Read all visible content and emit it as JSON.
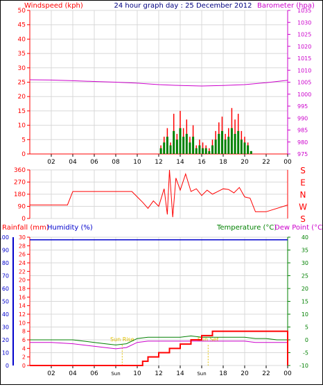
{
  "colors": {
    "wind": "#ff0000",
    "wind_avg": "#008000",
    "wind_gust": "#ff0000",
    "baro": "#cc00cc",
    "title": "#000080",
    "grid": "#d8d8d8",
    "rain": "#ff0000",
    "humidity": "#0000cc",
    "temperature": "#008000",
    "dewpoint": "#cc00cc",
    "sun": "#e0c000"
  },
  "header": {
    "title": "24 hour graph day : 25 December 2012",
    "left_label": "Windspeed (kph)",
    "right_label": "Barometer (hpa)"
  },
  "bottom_header": {
    "rainfall_label": "Rainfall (mm)",
    "humidity_label": "Humidity (%)",
    "temperature_label": "Temperature (°C)",
    "dewpoint_label": "Dew Point (°C)"
  },
  "x_ticks": [
    "02",
    "04",
    "06",
    "08",
    "10",
    "12",
    "14",
    "16",
    "18",
    "20",
    "22",
    "00"
  ],
  "bottom_x_ticks": [
    "02",
    "04",
    "06",
    "Sun Rise",
    "10",
    "12",
    "14",
    "Sun Set",
    "18",
    "20",
    "22",
    "00"
  ],
  "sun_labels": [
    "Sun Rise",
    "Sun Set"
  ],
  "direction_letters": [
    "S",
    "E",
    "N",
    "W",
    "S"
  ],
  "chart_data": [
    {
      "type": "line",
      "title": "24 hour graph day : 25 December 2012",
      "ylabel": "Windspeed (kph)",
      "ylabel_right": "Barometer (hpa)",
      "ylim": [
        0,
        50
      ],
      "ylim_right": [
        975,
        1035
      ],
      "y_ticks": [
        0,
        5,
        10,
        15,
        20,
        25,
        30,
        35,
        40,
        45,
        50
      ],
      "y_ticks_right": [
        975,
        980,
        985,
        990,
        995,
        1000,
        1005,
        1010,
        1015,
        1020,
        1025,
        1030,
        1035
      ],
      "x": [
        0,
        2,
        4,
        6,
        8,
        10,
        12,
        14,
        16,
        18,
        20,
        22,
        24
      ],
      "series": [
        {
          "name": "Barometer (hpa)",
          "values": [
            1006,
            1005.9,
            1005.6,
            1005.3,
            1005,
            1004.6,
            1004,
            1003.6,
            1003.4,
            1003.6,
            1004,
            1004.8,
            1005.8
          ]
        },
        {
          "name": "Windspeed (kph)",
          "values": [
            0,
            0,
            0,
            0,
            0,
            0,
            0.5,
            9,
            8,
            9,
            8.5,
            0,
            0
          ]
        }
      ],
      "gust_x": [
        12.2,
        12.5,
        12.8,
        13.1,
        13.4,
        13.7,
        14,
        14.3,
        14.6,
        14.9,
        15.2,
        15.5,
        15.8,
        16.1,
        16.4,
        16.7,
        17,
        17.3,
        17.6,
        17.9,
        18.2,
        18.5,
        18.8,
        19.1,
        19.4,
        19.7,
        20,
        20.3,
        20.6
      ],
      "gust_values": [
        3,
        6,
        9,
        4,
        14,
        7,
        15,
        9,
        12,
        6,
        10,
        3,
        5,
        4,
        3,
        2,
        5,
        8,
        11,
        13,
        7,
        9,
        16,
        12,
        14,
        8,
        6,
        4,
        1
      ],
      "avg_values": [
        2,
        4,
        6,
        3,
        8,
        5,
        9,
        6,
        7,
        4,
        6,
        2,
        3,
        2,
        2,
        1,
        3,
        5,
        7,
        8,
        5,
        6,
        9,
        7,
        8,
        5,
        4,
        3,
        1
      ]
    },
    {
      "type": "line",
      "title": "",
      "ylabel": "",
      "ylim": [
        0,
        360
      ],
      "y_ticks": [
        0,
        90,
        180,
        270,
        360
      ],
      "x": [
        0,
        3.5,
        4,
        9.5,
        10,
        10.5,
        11,
        11.5,
        12,
        12.5,
        12.8,
        13,
        13.3,
        13.6,
        14,
        14.5,
        15,
        15.5,
        16,
        16.5,
        17,
        17.5,
        18,
        18.5,
        19,
        19.5,
        20,
        20.5,
        21,
        21.5,
        22,
        24
      ],
      "series": [
        {
          "name": "",
          "values": [
            100,
            100,
            200,
            200,
            160,
            120,
            75,
            130,
            90,
            220,
            30,
            360,
            10,
            300,
            210,
            330,
            200,
            220,
            170,
            210,
            180,
            200,
            220,
            215,
            190,
            230,
            160,
            150,
            50,
            50,
            50,
            100
          ]
        }
      ]
    },
    {
      "type": "line",
      "title": "",
      "ylabel": "Rainfall (mm)",
      "ylim": [
        0,
        30
      ],
      "y_ticks": [
        0,
        2,
        4,
        6,
        8,
        10,
        12,
        14,
        16,
        18,
        20,
        22,
        24,
        26,
        28,
        30
      ],
      "ylim_humidity": [
        0,
        100
      ],
      "y_ticks_humidity": [
        0,
        10,
        20,
        30,
        40,
        50,
        60,
        70,
        80,
        90,
        100
      ],
      "ylim_right": [
        -10,
        40
      ],
      "y_ticks_right": [
        -10,
        -5,
        0,
        5,
        10,
        15,
        20,
        25,
        30,
        35,
        40
      ],
      "x": [
        0,
        2,
        4,
        6,
        7,
        8,
        9,
        10,
        11,
        12,
        13,
        14,
        15,
        16,
        17,
        18,
        19,
        20,
        21,
        22,
        23,
        24
      ],
      "series": [
        {
          "name": "Humidity (%)",
          "values": [
            98,
            98,
            98,
            98,
            98,
            98,
            98,
            98,
            98,
            98,
            98,
            98,
            98,
            98,
            98,
            98,
            98,
            98,
            98,
            98,
            98,
            98
          ]
        },
        {
          "name": "Temperature (°C)",
          "values": [
            0,
            0,
            0,
            -1,
            -1.5,
            -2,
            -1.5,
            0.5,
            1,
            1,
            1,
            1,
            1.5,
            1,
            1,
            1,
            1,
            1,
            0.5,
            0.5,
            0,
            0
          ]
        },
        {
          "name": "Dew Point (°C)",
          "values": [
            -1,
            -1,
            -1.5,
            -2.5,
            -3,
            -3.5,
            -3,
            -1,
            -0.5,
            -0.5,
            -0.5,
            -0.5,
            -0.5,
            -0.5,
            -0.5,
            -0.5,
            -0.5,
            -0.5,
            -1,
            -1,
            -1,
            -1
          ]
        }
      ],
      "rain_x": [
        0,
        8.6,
        10,
        10.5,
        11,
        12,
        13,
        14,
        15,
        16,
        17,
        18,
        19,
        20,
        21,
        22,
        23,
        23.8,
        24
      ],
      "rain_values": [
        0,
        0,
        0,
        1,
        2,
        3,
        4,
        5,
        6,
        7,
        8,
        8,
        8,
        8,
        8,
        8,
        8,
        8,
        0
      ]
    }
  ]
}
